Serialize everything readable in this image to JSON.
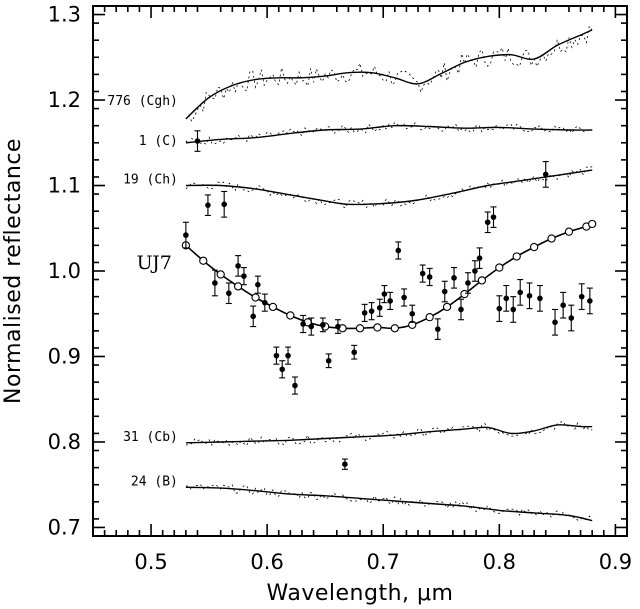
{
  "chart_data": {
    "type": "line",
    "title": "",
    "xlabel": "Wavelength, μm",
    "ylabel": "Normalised reflectance",
    "xlim": [
      0.45,
      0.91
    ],
    "ylim": [
      0.69,
      1.31
    ],
    "x_ticks": [
      0.5,
      0.6,
      0.7,
      0.8,
      0.9
    ],
    "x_tick_labels": [
      "0.5",
      "0.6",
      "0.7",
      "0.8",
      "0.9"
    ],
    "y_ticks": [
      0.7,
      0.8,
      0.9,
      1.0,
      1.1,
      1.2,
      1.3
    ],
    "y_tick_labels": [
      "0.7",
      "0.8",
      "0.9",
      "1.0",
      "1.1",
      "1.2",
      "1.3"
    ],
    "grid": false,
    "legend": "none",
    "reference_spectra": [
      {
        "name": "776 (Cgh)",
        "x": [
          0.53,
          0.55,
          0.57,
          0.59,
          0.61,
          0.63,
          0.65,
          0.67,
          0.69,
          0.71,
          0.73,
          0.75,
          0.77,
          0.79,
          0.81,
          0.83,
          0.85,
          0.87,
          0.88
        ],
        "y": [
          1.178,
          1.203,
          1.217,
          1.224,
          1.226,
          1.226,
          1.228,
          1.232,
          1.232,
          1.226,
          1.219,
          1.231,
          1.244,
          1.251,
          1.253,
          1.248,
          1.264,
          1.276,
          1.282
        ]
      },
      {
        "name": "1 (C)",
        "x": [
          0.53,
          0.56,
          0.59,
          0.62,
          0.65,
          0.68,
          0.71,
          0.74,
          0.77,
          0.8,
          0.83,
          0.86,
          0.88
        ],
        "y": [
          1.15,
          1.154,
          1.156,
          1.161,
          1.165,
          1.166,
          1.17,
          1.169,
          1.167,
          1.168,
          1.166,
          1.165,
          1.165
        ]
      },
      {
        "name": "19 (Ch)",
        "x": [
          0.53,
          0.56,
          0.59,
          0.62,
          0.65,
          0.67,
          0.7,
          0.73,
          0.76,
          0.79,
          0.82,
          0.85,
          0.88
        ],
        "y": [
          1.1,
          1.1,
          1.096,
          1.089,
          1.082,
          1.078,
          1.079,
          1.083,
          1.091,
          1.1,
          1.106,
          1.112,
          1.118
        ]
      },
      {
        "name": "31 (Cb)",
        "x": [
          0.53,
          0.56,
          0.59,
          0.62,
          0.65,
          0.68,
          0.71,
          0.74,
          0.77,
          0.79,
          0.81,
          0.83,
          0.85,
          0.87,
          0.88
        ],
        "y": [
          0.799,
          0.8,
          0.801,
          0.802,
          0.804,
          0.806,
          0.808,
          0.812,
          0.815,
          0.817,
          0.81,
          0.813,
          0.82,
          0.818,
          0.818
        ]
      },
      {
        "name": "24 (B)",
        "x": [
          0.53,
          0.56,
          0.59,
          0.62,
          0.65,
          0.68,
          0.71,
          0.74,
          0.77,
          0.8,
          0.83,
          0.86,
          0.88
        ],
        "y": [
          0.747,
          0.746,
          0.743,
          0.739,
          0.737,
          0.734,
          0.731,
          0.728,
          0.725,
          0.72,
          0.717,
          0.714,
          0.708
        ]
      }
    ],
    "uj7_model": {
      "name": "UJ7",
      "x": [
        0.53,
        0.545,
        0.56,
        0.575,
        0.59,
        0.605,
        0.62,
        0.635,
        0.65,
        0.665,
        0.68,
        0.695,
        0.71,
        0.725,
        0.74,
        0.755,
        0.77,
        0.785,
        0.8,
        0.815,
        0.83,
        0.845,
        0.86,
        0.875,
        0.88
      ],
      "y": [
        1.03,
        1.012,
        0.996,
        0.982,
        0.969,
        0.958,
        0.948,
        0.94,
        0.935,
        0.933,
        0.933,
        0.934,
        0.933,
        0.937,
        0.946,
        0.958,
        0.973,
        0.989,
        1.004,
        1.017,
        1.028,
        1.038,
        1.046,
        1.052,
        1.055
      ]
    },
    "uj7_observed": {
      "x": [
        0.53,
        0.54,
        0.549,
        0.555,
        0.563,
        0.567,
        0.575,
        0.58,
        0.588,
        0.592,
        0.598,
        0.608,
        0.613,
        0.618,
        0.624,
        0.631,
        0.638,
        0.648,
        0.653,
        0.661,
        0.667,
        0.675,
        0.684,
        0.69,
        0.697,
        0.701,
        0.706,
        0.713,
        0.718,
        0.725,
        0.734,
        0.74,
        0.747,
        0.753,
        0.761,
        0.767,
        0.773,
        0.779,
        0.783,
        0.79,
        0.795,
        0.8,
        0.806,
        0.812,
        0.818,
        0.826,
        0.835,
        0.84,
        0.848,
        0.855,
        0.862,
        0.871,
        0.878
      ],
      "y": [
        1.042,
        1.152,
        1.077,
        0.986,
        1.078,
        0.974,
        1.006,
        0.994,
        0.947,
        0.984,
        0.963,
        0.901,
        0.885,
        0.901,
        0.866,
        0.938,
        0.935,
        0.937,
        0.895,
        0.935,
        0.774,
        0.905,
        0.951,
        0.953,
        0.957,
        0.973,
        0.965,
        1.024,
        0.969,
        0.95,
        0.997,
        0.993,
        0.932,
        0.976,
        0.992,
        0.955,
        0.986,
        1.0,
        1.015,
        1.057,
        1.063,
        0.956,
        0.968,
        0.955,
        0.975,
        0.971,
        0.968,
        1.113,
        0.94,
        0.96,
        0.945,
        0.97,
        0.965
      ],
      "err": [
        0.015,
        0.012,
        0.012,
        0.015,
        0.015,
        0.012,
        0.012,
        0.01,
        0.012,
        0.01,
        0.01,
        0.01,
        0.01,
        0.01,
        0.01,
        0.01,
        0.01,
        0.008,
        0.008,
        0.008,
        0.006,
        0.008,
        0.01,
        0.01,
        0.01,
        0.01,
        0.01,
        0.01,
        0.01,
        0.01,
        0.01,
        0.01,
        0.012,
        0.012,
        0.012,
        0.012,
        0.012,
        0.012,
        0.012,
        0.012,
        0.012,
        0.015,
        0.015,
        0.015,
        0.015,
        0.015,
        0.015,
        0.015,
        0.015,
        0.015,
        0.015,
        0.015,
        0.015
      ]
    }
  }
}
